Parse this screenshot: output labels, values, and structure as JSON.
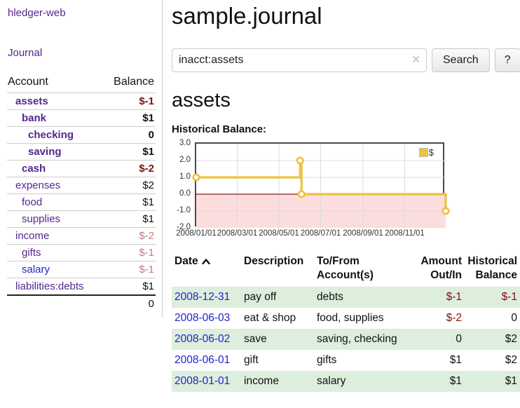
{
  "colors": {
    "link_purple": "#54278e",
    "link_blue": "#2222cc",
    "negative_strong": "#7f1010",
    "negative_soft": "#c27c7c",
    "row_green": "#ddeedd",
    "series_yellow": "#edc240"
  },
  "sidebar": {
    "app_title": "hledger-web",
    "journal_link": "Journal",
    "table": {
      "account_header": "Account",
      "balance_header": "Balance",
      "rows": [
        {
          "name": "assets",
          "depth": 1,
          "bold": true,
          "balance": "$-1",
          "neg": "strong"
        },
        {
          "name": "bank",
          "depth": 2,
          "bold": true,
          "balance": "$1"
        },
        {
          "name": "checking",
          "depth": 3,
          "bold": true,
          "balance": "0"
        },
        {
          "name": "saving",
          "depth": 3,
          "bold": true,
          "balance": "$1"
        },
        {
          "name": "cash",
          "depth": 2,
          "bold": true,
          "balance": "$-2",
          "neg": "strong"
        },
        {
          "name": "expenses",
          "depth": 1,
          "bold": false,
          "balance": "$2"
        },
        {
          "name": "food",
          "depth": 2,
          "bold": false,
          "balance": "$1"
        },
        {
          "name": "supplies",
          "depth": 2,
          "bold": false,
          "balance": "$1"
        },
        {
          "name": "income",
          "depth": 1,
          "bold": false,
          "balance": "$-2",
          "neg": "soft"
        },
        {
          "name": "gifts",
          "depth": 2,
          "bold": false,
          "balance": "$-1",
          "neg": "soft"
        },
        {
          "name": "salary",
          "depth": 2,
          "bold": false,
          "balance": "$-1",
          "neg": "soft",
          "link_style": "unvisited"
        },
        {
          "name": "liabilities:debts",
          "depth": 1,
          "bold": false,
          "balance": "$1"
        }
      ],
      "total": "0"
    }
  },
  "main": {
    "title": "sample.journal",
    "search": {
      "value": "inacct:assets",
      "clear_icon": "✕",
      "button_label": "Search",
      "help_label": "?"
    },
    "account_heading": "assets",
    "chart_heading": "Historical Balance:",
    "register": {
      "headers": {
        "date": "Date",
        "description": "Description",
        "accounts": "To/From Account(s)",
        "amount": "Amount Out/In",
        "balance": "Historical Balance"
      },
      "rows": [
        {
          "date": "2008-12-31",
          "description": "pay off",
          "accounts": "debts",
          "amount": "$-1",
          "amount_neg": true,
          "balance": "$-1",
          "balance_neg": true,
          "shaded": true
        },
        {
          "date": "2008-06-03",
          "description": "eat & shop",
          "accounts": "food, supplies",
          "amount": "$-2",
          "amount_neg": true,
          "balance": "0",
          "balance_neg": false,
          "shaded": false
        },
        {
          "date": "2008-06-02",
          "description": "save",
          "accounts": "saving, checking",
          "amount": "0",
          "amount_neg": false,
          "balance": "$2",
          "balance_neg": false,
          "shaded": true
        },
        {
          "date": "2008-06-01",
          "description": "gift",
          "accounts": "gifts",
          "amount": "$1",
          "amount_neg": false,
          "balance": "$2",
          "balance_neg": false,
          "shaded": false
        },
        {
          "date": "2008-01-01",
          "description": "income",
          "accounts": "salary",
          "amount": "$1",
          "amount_neg": false,
          "balance": "$1",
          "balance_neg": false,
          "shaded": true
        }
      ]
    }
  },
  "chart_data": {
    "type": "line",
    "title": "Historical Balance:",
    "step": true,
    "series": [
      {
        "name": "$",
        "color": "#edc240",
        "points": [
          {
            "date": "2008-01-01",
            "value": 1
          },
          {
            "date": "2008-06-01",
            "value": 2
          },
          {
            "date": "2008-06-03",
            "value": 0
          },
          {
            "date": "2008-12-31",
            "value": -1
          }
        ]
      }
    ],
    "xrange": [
      "2008-01-01",
      "2008-12-31"
    ],
    "ylim": [
      -2,
      3
    ],
    "ytick_labels": [
      "3.0",
      "2.0",
      "1.0",
      "0.0",
      "-1.0",
      "-2.0"
    ],
    "ytick_values": [
      3,
      2,
      1,
      0,
      -1,
      -2
    ],
    "xtick_labels": [
      "2008/01/01",
      "2008/03/01",
      "2008/05/01",
      "2008/07/01",
      "2008/09/01",
      "2008/11/01"
    ],
    "xtick_dates": [
      "2008-01-01",
      "2008-03-01",
      "2008-05-01",
      "2008-07-01",
      "2008-09-01",
      "2008-11-01"
    ],
    "grid": true,
    "negative_region_fill": "#fbdddd",
    "zero_line_color": "#8c1a1a",
    "grid_line_color": "#dcdcdc",
    "legend": {
      "label": "$",
      "position": "top-right"
    }
  }
}
